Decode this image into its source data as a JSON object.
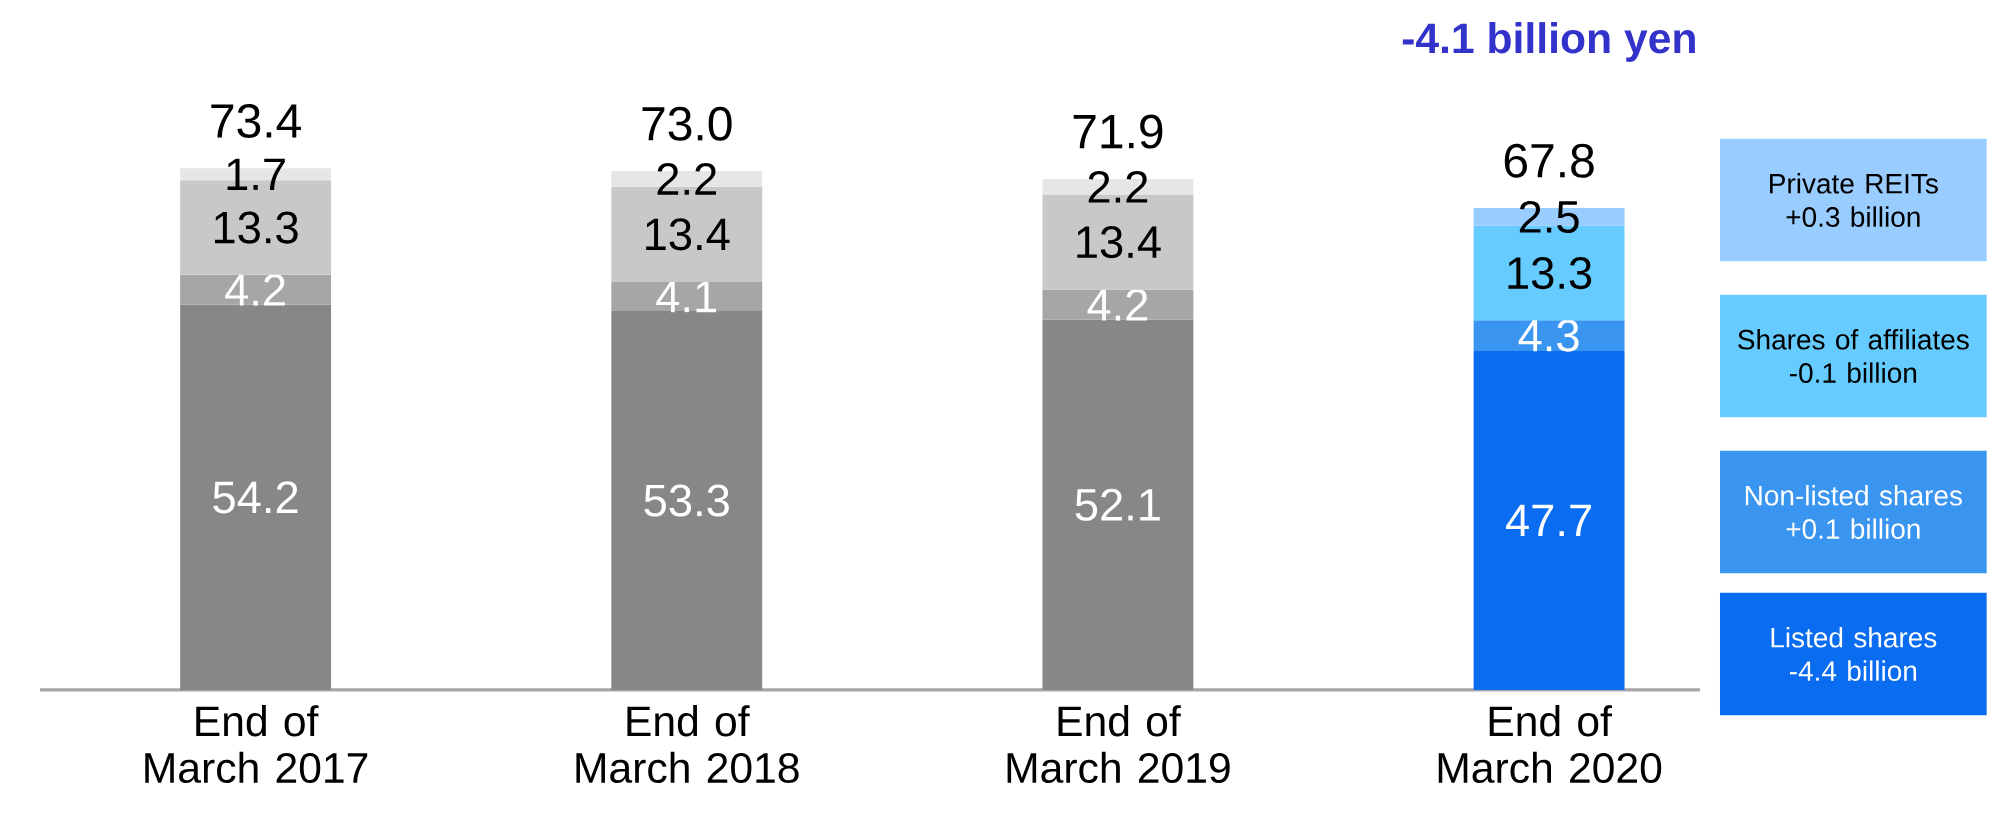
{
  "chart_data": {
    "type": "bar",
    "stacked": true,
    "data_labels": true,
    "legend": "right",
    "categories": [
      "End of March 2017",
      "End of March 2018",
      "End of March 2019",
      "End of March 2020"
    ],
    "series": [
      {
        "name": "Listed shares",
        "colors": [
          "#878787",
          "#878787",
          "#878787",
          "#0a6cf0"
        ],
        "values": [
          54.2,
          53.3,
          52.1,
          47.7
        ]
      },
      {
        "name": "Non-listed shares",
        "colors": [
          "#a6a6a6",
          "#a6a6a6",
          "#a6a6a6",
          "#3a95f0"
        ],
        "values": [
          4.2,
          4.1,
          4.2,
          4.3
        ]
      },
      {
        "name": "Shares of affiliates",
        "colors": [
          "#c8c8c8",
          "#c8c8c8",
          "#c8c8c8",
          "#66ccff"
        ],
        "values": [
          13.3,
          13.4,
          13.4,
          13.3
        ]
      },
      {
        "name": "Private REITs",
        "colors": [
          "#e6e6e6",
          "#e6e6e6",
          "#e6e6e6",
          "#99ccff"
        ],
        "values": [
          1.7,
          2.2,
          2.2,
          2.5
        ]
      }
    ],
    "totals": [
      "73.4",
      "73.0",
      "71.9",
      "67.8"
    ],
    "annotations": [
      "-4.1 billion yen",
      "-4.4 billion",
      "+0.1 billion",
      "-0.1 billion",
      "+0.3 billion"
    ]
  }
}
